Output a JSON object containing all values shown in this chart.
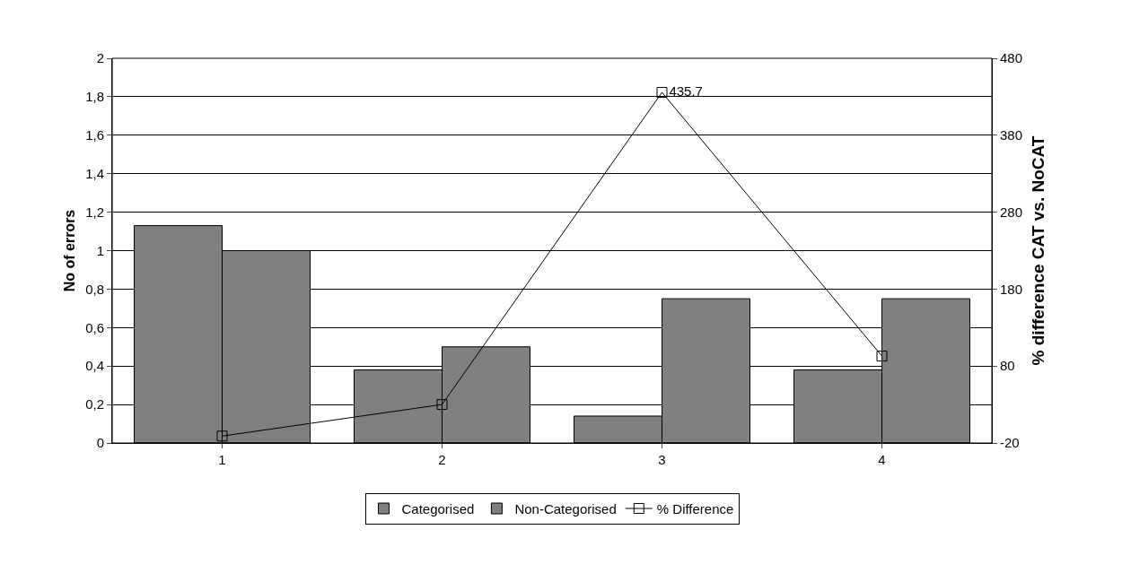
{
  "chart_data": {
    "type": "bar",
    "categories": [
      "1",
      "2",
      "3",
      "4"
    ],
    "ylabel": "No of errors",
    "y2label": "% difference CAT vs. NoCAT",
    "series": [
      {
        "name": "Categorised",
        "color": "#808080",
        "values": [
          1.13,
          0.38,
          0.14,
          0.38
        ]
      },
      {
        "name": "Non-Categorised",
        "color": "#808080",
        "values": [
          1.0,
          0.5,
          0.75,
          0.75
        ]
      },
      {
        "name": "% Difference",
        "type": "line",
        "axis": "y2",
        "color": "#000000",
        "marker": "square",
        "values": [
          -11,
          30,
          435.7,
          93
        ],
        "value_labels": [
          null,
          null,
          "435.7",
          null
        ]
      }
    ],
    "ylim": [
      0,
      2
    ],
    "yticks": [
      0,
      {
        "value": 0.2,
        "label": "0,2"
      },
      {
        "value": 0.4,
        "label": "0,4"
      },
      {
        "value": 0.6,
        "label": "0,6"
      },
      {
        "value": 0.8,
        "label": "0,8"
      },
      1,
      {
        "value": 1.2,
        "label": "1,2"
      },
      {
        "value": 1.4,
        "label": "1,4"
      },
      {
        "value": 1.6,
        "label": "1,6"
      },
      {
        "value": 1.8,
        "label": "1,8"
      },
      2
    ],
    "y2lim": [
      -20,
      480
    ],
    "y2ticks": [
      -20,
      80,
      180,
      280,
      380,
      480
    ],
    "grid": "y",
    "legend": "bottom"
  }
}
